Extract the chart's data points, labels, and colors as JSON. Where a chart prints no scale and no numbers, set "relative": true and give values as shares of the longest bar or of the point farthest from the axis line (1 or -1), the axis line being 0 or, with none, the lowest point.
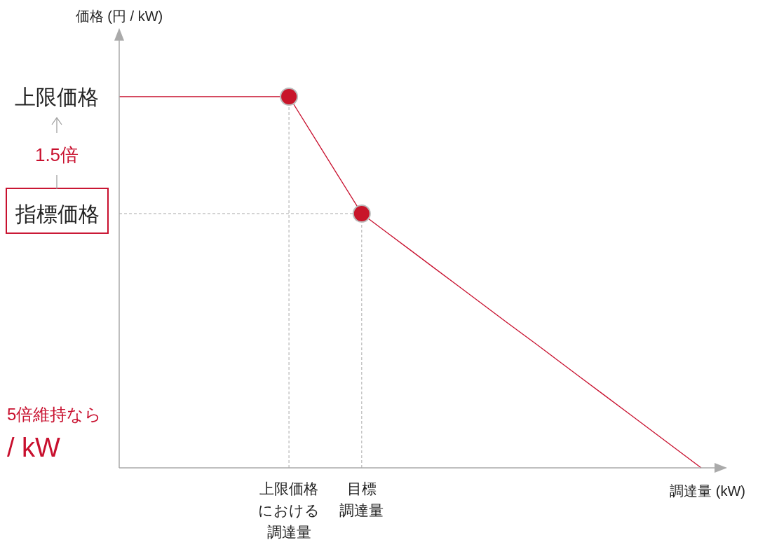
{
  "chart_data": {
    "type": "line",
    "relative": true,
    "xlabel": "調達量 (kW)",
    "categories": [
      null,
      null,
      null,
      null,
      null,
      null,
      null,
      "上限価格における調達量",
      null,
      null,
      "目標調達量",
      null,
      null,
      null,
      null,
      null,
      null,
      null,
      null,
      null,
      null,
      null,
      null,
      null,
      null
    ],
    "series": [
      {
        "color": "#c8102e",
        "values": [
          1,
          1,
          1,
          1,
          1,
          1,
          1,
          1,
          0.895,
          0.79,
          0.685,
          0.636,
          0.587,
          0.538,
          0.489,
          0.44,
          0.391,
          0.343,
          0.294,
          0.245,
          0.196,
          0.147,
          0.098,
          0.049,
          0
        ],
        "marker": "none"
      },
      {
        "type": "scatter",
        "color": "#c8152a",
        "values": [
          null,
          null,
          null,
          null,
          null,
          null,
          null,
          1,
          null,
          null,
          0.685,
          null,
          null,
          null,
          null,
          null,
          null,
          null,
          null,
          null,
          null,
          null,
          null,
          null,
          null
        ],
        "marker": "circle"
      }
    ],
    "ref_lines": [
      {
        "axis": "y",
        "value": 0.685,
        "label": "指標価格",
        "color": "#aaaaaa",
        "line_style": "dashed"
      },
      {
        "axis": "x",
        "value": "上限価格における調達量",
        "color": "#aaaaaa",
        "line_style": "dashed"
      },
      {
        "axis": "x",
        "value": "目標調達量",
        "color": "#aaaaaa",
        "line_style": "dashed"
      }
    ],
    "annotations": [
      "価格 (円 / kW)",
      "上限価格",
      "1.5倍",
      "5倍維持なら",
      "/ kW"
    ]
  }
}
